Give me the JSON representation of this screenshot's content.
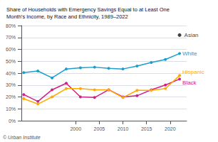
{
  "chart_data": {
    "type": "line",
    "title": "Share of Households with Emergency Savings Equal to at Least One\nMonth’s Income, by Race and Ethnicity, 1989–2022",
    "annotations": [
      "© Urban Institute"
    ],
    "series": [
      {
        "name": "White",
        "color": "#1a9fcc",
        "marker": "circle",
        "x": [
          1989,
          1992,
          1995,
          1998,
          2001,
          2004,
          2007,
          2010,
          2013,
          2016,
          2019,
          2022
        ],
        "values": [
          0.405,
          0.418,
          0.36,
          0.435,
          0.445,
          0.45,
          0.44,
          0.435,
          0.46,
          0.49,
          0.515,
          0.565
        ]
      },
      {
        "name": "Black",
        "color": "#cc2288",
        "marker": "circle",
        "x": [
          1989,
          1992,
          1995,
          1998,
          2001,
          2004,
          2007,
          2010,
          2013,
          2016,
          2019,
          2022
        ],
        "values": [
          0.22,
          0.162,
          0.26,
          0.315,
          0.2,
          0.195,
          0.26,
          0.2,
          0.21,
          0.26,
          0.3,
          0.35
        ]
      },
      {
        "name": "Hispanic",
        "color": "#ffaa00",
        "marker": "circle",
        "x": [
          1989,
          1992,
          1995,
          1998,
          2001,
          2004,
          2007,
          2010,
          2013,
          2016,
          2019,
          2022
        ],
        "values": [
          0.185,
          0.14,
          0.2,
          0.27,
          0.27,
          0.26,
          0.26,
          0.195,
          0.255,
          0.255,
          0.27,
          0.38
        ]
      },
      {
        "name": "Asian",
        "type": "scatter",
        "color": "#111111",
        "marker": "circle",
        "x": [
          2022
        ],
        "values": [
          0.72
        ]
      }
    ],
    "xlim": [
      1988.5,
      2023.5
    ],
    "xticks": [
      2000,
      2005,
      2010,
      2015,
      2020
    ],
    "ylim": [
      0,
      0.8
    ],
    "yticks": [
      {
        "value": 0.0,
        "label": "0%"
      },
      {
        "value": 0.1,
        "label": "10%"
      },
      {
        "value": 0.2,
        "label": "20%"
      },
      {
        "value": 0.3,
        "label": "30%"
      },
      {
        "value": 0.4,
        "label": "40%"
      },
      {
        "value": 0.5,
        "label": "50%"
      },
      {
        "value": 0.6,
        "label": "60%"
      },
      {
        "value": 0.7,
        "label": "70%"
      },
      {
        "value": 0.8,
        "label": "80%"
      }
    ],
    "grid": true
  }
}
